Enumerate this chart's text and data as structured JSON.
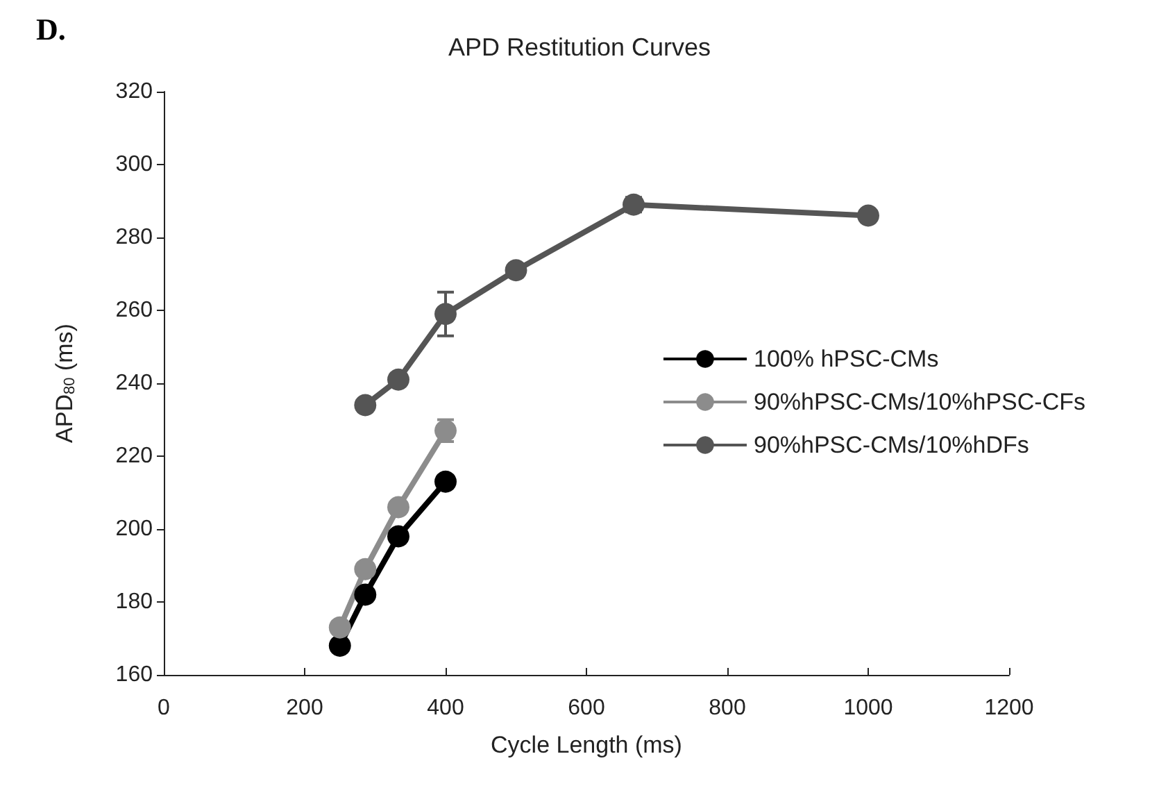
{
  "chart_data": {
    "type": "line",
    "title": "APD Restitution Curves",
    "xlabel": "Cycle Length (ms)",
    "ylabel": "APD$_{80}$ (ms)",
    "annotations": [
      "D."
    ],
    "xlim": [
      0,
      1200
    ],
    "xticks": [
      0,
      200,
      400,
      600,
      800,
      1000,
      1200
    ],
    "ylim": [
      160,
      320
    ],
    "yticks": [
      160,
      180,
      200,
      220,
      240,
      260,
      280,
      300,
      320
    ],
    "grid": false,
    "legend": "right",
    "marker": "circle",
    "line_style": "solid",
    "series": [
      {
        "name": "100% hPSC-CMs",
        "color": "#000000",
        "x": [
          250,
          286,
          333,
          400
        ],
        "values": [
          168,
          182,
          198,
          213
        ]
      },
      {
        "name": "90%hPSC-CMs/10%hPSC-CFs",
        "color": "#8c8c8c",
        "x": [
          250,
          286,
          333,
          400
        ],
        "values": [
          173,
          189,
          206,
          227
        ],
        "errors": [
          null,
          null,
          null,
          3
        ]
      },
      {
        "name": "90%hPSC-CMs/10%hDFs",
        "color": "#555555",
        "x": [
          286,
          333,
          400,
          500,
          667,
          1000
        ],
        "values": [
          234,
          241,
          259,
          271,
          289,
          286
        ],
        "errors": [
          null,
          null,
          6,
          null,
          2,
          null
        ]
      }
    ]
  }
}
